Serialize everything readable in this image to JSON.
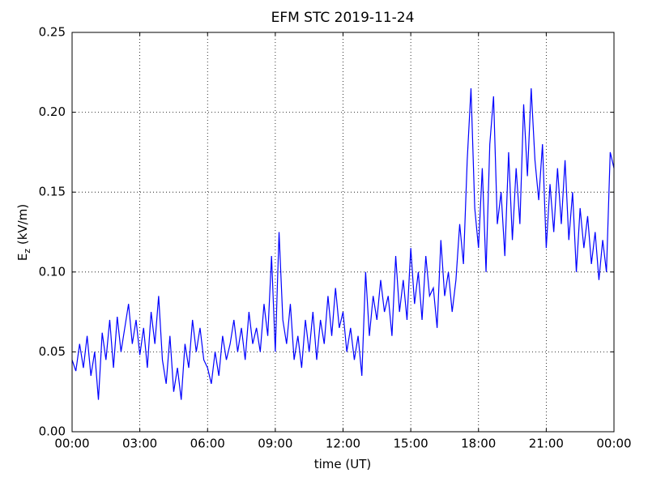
{
  "chart_data": {
    "type": "line",
    "title": "EFM STC    2019-11-24",
    "xlabel": "time (UT)",
    "ylabel": [
      "E",
      "z",
      " (kV/m)"
    ],
    "x": [
      0,
      10,
      20,
      30,
      40,
      50,
      60,
      70,
      80,
      90,
      100,
      110,
      120,
      130,
      140,
      150,
      160,
      170,
      180,
      190,
      200,
      210,
      220,
      230,
      240,
      250,
      260,
      270,
      280,
      290,
      300,
      310,
      320,
      330,
      340,
      350,
      360,
      370,
      380,
      390,
      400,
      410,
      420,
      430,
      440,
      450,
      460,
      470,
      480,
      490,
      500,
      510,
      520,
      530,
      540,
      550,
      560,
      570,
      580,
      590,
      600,
      610,
      620,
      630,
      640,
      650,
      660,
      670,
      680,
      690,
      700,
      710,
      720,
      730,
      740,
      750,
      760,
      770,
      780,
      790,
      800,
      810,
      820,
      830,
      840,
      850,
      860,
      870,
      880,
      890,
      900,
      910,
      920,
      930,
      940,
      950,
      960,
      970,
      980,
      990,
      1000,
      1010,
      1020,
      1030,
      1040,
      1050,
      1060,
      1070,
      1080,
      1090,
      1100,
      1110,
      1120,
      1130,
      1140,
      1150,
      1160,
      1170,
      1180,
      1190,
      1200,
      1210,
      1220,
      1230,
      1240,
      1250,
      1260,
      1270,
      1280,
      1290,
      1300,
      1310,
      1320,
      1330,
      1340,
      1350,
      1360,
      1370,
      1380,
      1390,
      1400,
      1410,
      1420,
      1430,
      1440
    ],
    "series": [
      {
        "name": "Ez",
        "color": "#0000ff",
        "values": [
          0.045,
          0.038,
          0.055,
          0.04,
          0.06,
          0.035,
          0.05,
          0.02,
          0.062,
          0.045,
          0.07,
          0.04,
          0.072,
          0.05,
          0.065,
          0.08,
          0.055,
          0.07,
          0.048,
          0.065,
          0.04,
          0.075,
          0.055,
          0.085,
          0.045,
          0.03,
          0.06,
          0.025,
          0.04,
          0.02,
          0.055,
          0.04,
          0.07,
          0.05,
          0.065,
          0.045,
          0.04,
          0.03,
          0.05,
          0.035,
          0.06,
          0.045,
          0.055,
          0.07,
          0.05,
          0.065,
          0.045,
          0.075,
          0.055,
          0.065,
          0.05,
          0.08,
          0.06,
          0.11,
          0.05,
          0.125,
          0.07,
          0.055,
          0.08,
          0.045,
          0.06,
          0.04,
          0.07,
          0.05,
          0.075,
          0.045,
          0.07,
          0.055,
          0.085,
          0.06,
          0.09,
          0.065,
          0.075,
          0.05,
          0.065,
          0.045,
          0.06,
          0.035,
          0.1,
          0.06,
          0.085,
          0.07,
          0.095,
          0.075,
          0.085,
          0.06,
          0.11,
          0.075,
          0.095,
          0.07,
          0.115,
          0.08,
          0.1,
          0.07,
          0.11,
          0.085,
          0.09,
          0.065,
          0.12,
          0.085,
          0.1,
          0.075,
          0.095,
          0.13,
          0.105,
          0.17,
          0.215,
          0.14,
          0.115,
          0.165,
          0.1,
          0.18,
          0.21,
          0.13,
          0.15,
          0.11,
          0.175,
          0.12,
          0.165,
          0.13,
          0.205,
          0.16,
          0.215,
          0.17,
          0.145,
          0.18,
          0.115,
          0.155,
          0.125,
          0.165,
          0.13,
          0.17,
          0.12,
          0.15,
          0.1,
          0.14,
          0.115,
          0.135,
          0.105,
          0.125,
          0.095,
          0.12,
          0.1,
          0.175,
          0.165
        ]
      }
    ],
    "xlim": [
      0,
      1440
    ],
    "xticks": [
      {
        "value": 0,
        "label": "00:00"
      },
      {
        "value": 180,
        "label": "03:00"
      },
      {
        "value": 360,
        "label": "06:00"
      },
      {
        "value": 540,
        "label": "09:00"
      },
      {
        "value": 720,
        "label": "12:00"
      },
      {
        "value": 900,
        "label": "15:00"
      },
      {
        "value": 1080,
        "label": "18:00"
      },
      {
        "value": 1260,
        "label": "21:00"
      },
      {
        "value": 1440,
        "label": "00:00"
      }
    ],
    "ylim": [
      0,
      0.25
    ],
    "yticks": [
      {
        "value": 0,
        "label": "0.00"
      },
      {
        "value": 0.05,
        "label": "0.05"
      },
      {
        "value": 0.1,
        "label": "0.10"
      },
      {
        "value": 0.15,
        "label": "0.15"
      },
      {
        "value": 0.2,
        "label": "0.20"
      },
      {
        "value": 0.25,
        "label": "0.25"
      }
    ],
    "grid": true
  }
}
